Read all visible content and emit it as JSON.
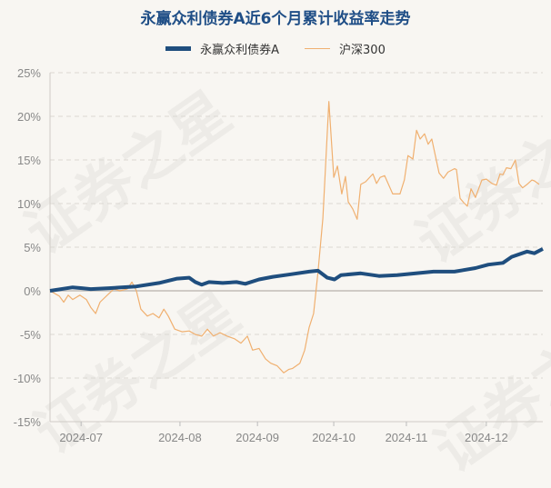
{
  "watermark": "证券之星",
  "chart_data": {
    "type": "line",
    "title": "永赢众利债券A近6个月累计收益率走势",
    "xlabel": "",
    "ylabel": "",
    "legend_position": "top-center",
    "grid": true,
    "ylim": [
      -15,
      25
    ],
    "xlim": [
      0,
      122.1
    ],
    "x_unit": "trading-day index",
    "yticks": [
      25,
      20,
      15,
      10,
      5,
      0,
      -5,
      -10,
      -15
    ],
    "ytick_labels": [
      "25%",
      "20%",
      "15%",
      "10%",
      "5%",
      "0%",
      "-5%",
      "-10%",
      "-15%"
    ],
    "xticks": [
      {
        "pos": 7.7,
        "label": "2024-07"
      },
      {
        "pos": 32.2,
        "label": "2024-08"
      },
      {
        "pos": 51.4,
        "label": "2024-09"
      },
      {
        "pos": 70.3,
        "label": "2024-10"
      },
      {
        "pos": 88.3,
        "label": "2024-11"
      },
      {
        "pos": 108.1,
        "label": "2024-12"
      }
    ],
    "series": [
      {
        "name": "永赢众利债券A",
        "color": "#1f4e7e",
        "points": [
          [
            0,
            0
          ],
          [
            5.6,
            0.4
          ],
          [
            7.9,
            0.3
          ],
          [
            10.1,
            0.2
          ],
          [
            14.6,
            0.3
          ],
          [
            21.4,
            0.5
          ],
          [
            27.0,
            0.9
          ],
          [
            31.5,
            1.4
          ],
          [
            34.5,
            1.5
          ],
          [
            36.0,
            1.0
          ],
          [
            37.6,
            0.7
          ],
          [
            39.4,
            1.0
          ],
          [
            42.8,
            0.9
          ],
          [
            46.2,
            1.0
          ],
          [
            48.4,
            0.8
          ],
          [
            51.8,
            1.3
          ],
          [
            55.2,
            1.6
          ],
          [
            59.7,
            1.9
          ],
          [
            64.2,
            2.2
          ],
          [
            66.4,
            2.3
          ],
          [
            68.7,
            1.5
          ],
          [
            70.5,
            1.3
          ],
          [
            72.1,
            1.8
          ],
          [
            77.0,
            2.0
          ],
          [
            81.5,
            1.7
          ],
          [
            86.0,
            1.8
          ],
          [
            95.0,
            2.2
          ],
          [
            100.2,
            2.2
          ],
          [
            105.4,
            2.6
          ],
          [
            108.6,
            3.0
          ],
          [
            112.2,
            3.2
          ],
          [
            114.4,
            3.9
          ],
          [
            118.2,
            4.5
          ],
          [
            120.0,
            4.3
          ],
          [
            122.1,
            4.8
          ]
        ]
      },
      {
        "name": "沪深300",
        "color": "#f0b070",
        "points": [
          [
            0,
            0
          ],
          [
            2.3,
            -0.6
          ],
          [
            3.4,
            -1.3
          ],
          [
            4.5,
            -0.5
          ],
          [
            5.6,
            -1.0
          ],
          [
            7.4,
            -0.5
          ],
          [
            9.0,
            -1.0
          ],
          [
            10.1,
            -1.9
          ],
          [
            11.3,
            -2.6
          ],
          [
            12.4,
            -1.3
          ],
          [
            14.2,
            -0.5
          ],
          [
            15.8,
            0.2
          ],
          [
            17.3,
            0
          ],
          [
            19.1,
            0.2
          ],
          [
            20.3,
            1.0
          ],
          [
            21.4,
            0
          ],
          [
            22.5,
            -2.1
          ],
          [
            24.1,
            -2.9
          ],
          [
            25.5,
            -2.6
          ],
          [
            27.0,
            -3.1
          ],
          [
            28.2,
            -2.1
          ],
          [
            29.3,
            -2.9
          ],
          [
            30.9,
            -4.4
          ],
          [
            32.7,
            -4.7
          ],
          [
            34.5,
            -4.6
          ],
          [
            36.0,
            -5.0
          ],
          [
            37.6,
            -5.2
          ],
          [
            39.0,
            -4.4
          ],
          [
            40.5,
            -5.2
          ],
          [
            42.1,
            -4.8
          ],
          [
            43.9,
            -5.2
          ],
          [
            45.7,
            -5.5
          ],
          [
            47.3,
            -6.0
          ],
          [
            48.9,
            -5.2
          ],
          [
            50.2,
            -6.8
          ],
          [
            51.8,
            -6.6
          ],
          [
            53.4,
            -7.8
          ],
          [
            54.7,
            -8.3
          ],
          [
            56.3,
            -8.6
          ],
          [
            57.9,
            -9.4
          ],
          [
            59.2,
            -9.0
          ],
          [
            60.1,
            -8.9
          ],
          [
            61.9,
            -8.3
          ],
          [
            63.1,
            -6.8
          ],
          [
            64.2,
            -4.2
          ],
          [
            65.3,
            -2.6
          ],
          [
            66.4,
            2.1
          ],
          [
            67.6,
            8.3
          ],
          [
            69.1,
            21.7
          ],
          [
            70.3,
            13.0
          ],
          [
            71.2,
            14.3
          ],
          [
            72.3,
            11.1
          ],
          [
            73.2,
            13.1
          ],
          [
            73.9,
            10.2
          ],
          [
            75.0,
            9.4
          ],
          [
            76.1,
            8.2
          ],
          [
            77.0,
            12.2
          ],
          [
            78.2,
            12.5
          ],
          [
            80.0,
            13.4
          ],
          [
            80.9,
            12.3
          ],
          [
            81.8,
            13.0
          ],
          [
            82.9,
            13.2
          ],
          [
            84.9,
            11.1
          ],
          [
            86.7,
            11.1
          ],
          [
            87.8,
            12.7
          ],
          [
            88.7,
            15.5
          ],
          [
            89.9,
            15.1
          ],
          [
            90.8,
            18.4
          ],
          [
            91.7,
            17.4
          ],
          [
            92.8,
            18.0
          ],
          [
            93.7,
            16.8
          ],
          [
            94.6,
            17.4
          ],
          [
            96.4,
            13.5
          ],
          [
            97.5,
            12.9
          ],
          [
            98.6,
            13.6
          ],
          [
            100.2,
            14.0
          ],
          [
            100.7,
            13.9
          ],
          [
            101.6,
            10.6
          ],
          [
            102.5,
            10.1
          ],
          [
            103.4,
            9.7
          ],
          [
            104.3,
            11.7
          ],
          [
            105.4,
            10.7
          ],
          [
            107.0,
            12.7
          ],
          [
            108.1,
            12.8
          ],
          [
            109.5,
            12.3
          ],
          [
            110.6,
            12.1
          ],
          [
            111.5,
            13.4
          ],
          [
            112.2,
            13.3
          ],
          [
            113.1,
            14.1
          ],
          [
            114.2,
            14.0
          ],
          [
            115.3,
            15.0
          ],
          [
            116.2,
            12.3
          ],
          [
            117.1,
            11.8
          ],
          [
            118.2,
            12.2
          ],
          [
            119.4,
            12.7
          ],
          [
            120.0,
            12.6
          ],
          [
            121.2,
            12.2
          ]
        ]
      }
    ]
  }
}
